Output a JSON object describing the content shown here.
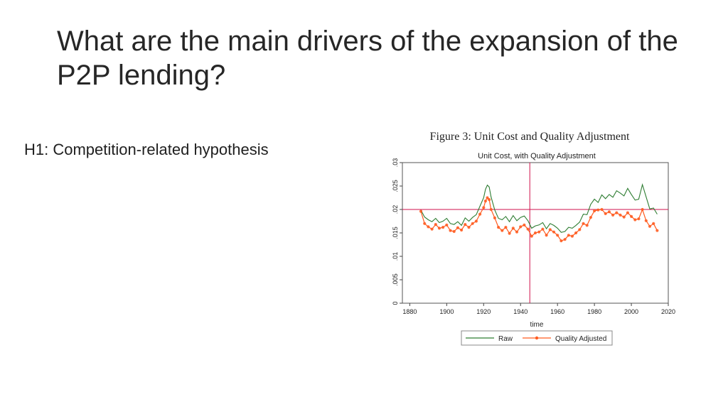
{
  "slide": {
    "title": "What are the main drivers of the expansion of the P2P lending?",
    "hypothesis": "H1: Competition-related  hypothesis"
  },
  "figure": {
    "caption": "Figure 3: Unit Cost and Quality Adjustment"
  },
  "colors": {
    "raw": "#2e7d32",
    "quality_adjusted": "#ff5a1f",
    "reference_lines": "#d0104c"
  },
  "chart_data": {
    "type": "line",
    "title": "Unit Cost, with Quality Adjustment",
    "xlabel": "time",
    "ylabel": "",
    "xlim": [
      1876,
      2020
    ],
    "ylim": [
      0,
      0.03
    ],
    "x_ticks": [
      1880,
      1900,
      1920,
      1940,
      1960,
      1980,
      2000,
      2020
    ],
    "y_ticks": [
      0,
      0.005,
      0.01,
      0.015,
      0.02,
      0.025,
      0.03
    ],
    "y_tick_labels": [
      "0",
      ".005",
      ".01",
      ".015",
      ".02",
      ".025",
      ".03"
    ],
    "grid": false,
    "reference_lines": {
      "vertical_x": 1945,
      "horizontal_y": 0.02
    },
    "legend": {
      "position": "bottom",
      "entries": [
        "Raw",
        "Quality Adjusted"
      ]
    },
    "series": [
      {
        "name": "Raw",
        "marker": "none",
        "x": [
          1886,
          1888,
          1890,
          1892,
          1894,
          1896,
          1898,
          1900,
          1902,
          1904,
          1906,
          1908,
          1910,
          1912,
          1914,
          1916,
          1918,
          1920,
          1921,
          1922,
          1923,
          1924,
          1926,
          1928,
          1930,
          1932,
          1934,
          1936,
          1938,
          1940,
          1942,
          1944,
          1946,
          1948,
          1950,
          1952,
          1954,
          1956,
          1958,
          1960,
          1962,
          1964,
          1966,
          1968,
          1970,
          1972,
          1974,
          1976,
          1978,
          1980,
          1982,
          1984,
          1986,
          1988,
          1990,
          1992,
          1994,
          1996,
          1998,
          2000,
          2002,
          2004,
          2006,
          2008,
          2010,
          2012,
          2014
        ],
        "y": [
          0.0199,
          0.0184,
          0.0178,
          0.0174,
          0.0181,
          0.0172,
          0.0175,
          0.0181,
          0.017,
          0.0168,
          0.0174,
          0.0166,
          0.0182,
          0.0175,
          0.0183,
          0.0189,
          0.0207,
          0.0225,
          0.0243,
          0.0252,
          0.0248,
          0.0227,
          0.0199,
          0.0181,
          0.0178,
          0.0185,
          0.0174,
          0.0187,
          0.0176,
          0.0183,
          0.0186,
          0.0176,
          0.016,
          0.0165,
          0.0167,
          0.0172,
          0.0159,
          0.017,
          0.0166,
          0.016,
          0.0151,
          0.0153,
          0.0162,
          0.016,
          0.0166,
          0.0173,
          0.019,
          0.0189,
          0.0211,
          0.0222,
          0.0215,
          0.0231,
          0.0223,
          0.0232,
          0.0226,
          0.024,
          0.0235,
          0.0229,
          0.0245,
          0.0232,
          0.022,
          0.0222,
          0.0253,
          0.0227,
          0.0201,
          0.0203,
          0.019
        ]
      },
      {
        "name": "Quality Adjusted",
        "marker": "circle",
        "x": [
          1886,
          1888,
          1890,
          1892,
          1894,
          1896,
          1898,
          1900,
          1902,
          1904,
          1906,
          1908,
          1910,
          1912,
          1914,
          1916,
          1918,
          1920,
          1921,
          1922,
          1923,
          1924,
          1926,
          1928,
          1930,
          1932,
          1934,
          1936,
          1938,
          1940,
          1942,
          1944,
          1946,
          1948,
          1950,
          1952,
          1954,
          1956,
          1958,
          1960,
          1962,
          1964,
          1966,
          1968,
          1970,
          1972,
          1974,
          1976,
          1978,
          1980,
          1982,
          1984,
          1986,
          1988,
          1990,
          1992,
          1994,
          1996,
          1998,
          2000,
          2002,
          2004,
          2006,
          2008,
          2010,
          2012,
          2014
        ],
        "y": [
          0.0196,
          0.017,
          0.0163,
          0.0158,
          0.0168,
          0.016,
          0.0162,
          0.0167,
          0.0155,
          0.0153,
          0.0161,
          0.0156,
          0.0168,
          0.0162,
          0.017,
          0.0175,
          0.019,
          0.0204,
          0.0218,
          0.0225,
          0.0221,
          0.02,
          0.0182,
          0.0162,
          0.0155,
          0.0162,
          0.0149,
          0.016,
          0.0152,
          0.0163,
          0.0167,
          0.0158,
          0.0143,
          0.015,
          0.0152,
          0.0158,
          0.0145,
          0.0157,
          0.0152,
          0.0145,
          0.0133,
          0.0136,
          0.0145,
          0.0143,
          0.015,
          0.0157,
          0.017,
          0.0166,
          0.0183,
          0.0197,
          0.0199,
          0.02,
          0.0191,
          0.0195,
          0.0188,
          0.0193,
          0.0188,
          0.0184,
          0.0193,
          0.0185,
          0.0178,
          0.018,
          0.02,
          0.0176,
          0.0164,
          0.017,
          0.0155
        ]
      }
    ]
  }
}
